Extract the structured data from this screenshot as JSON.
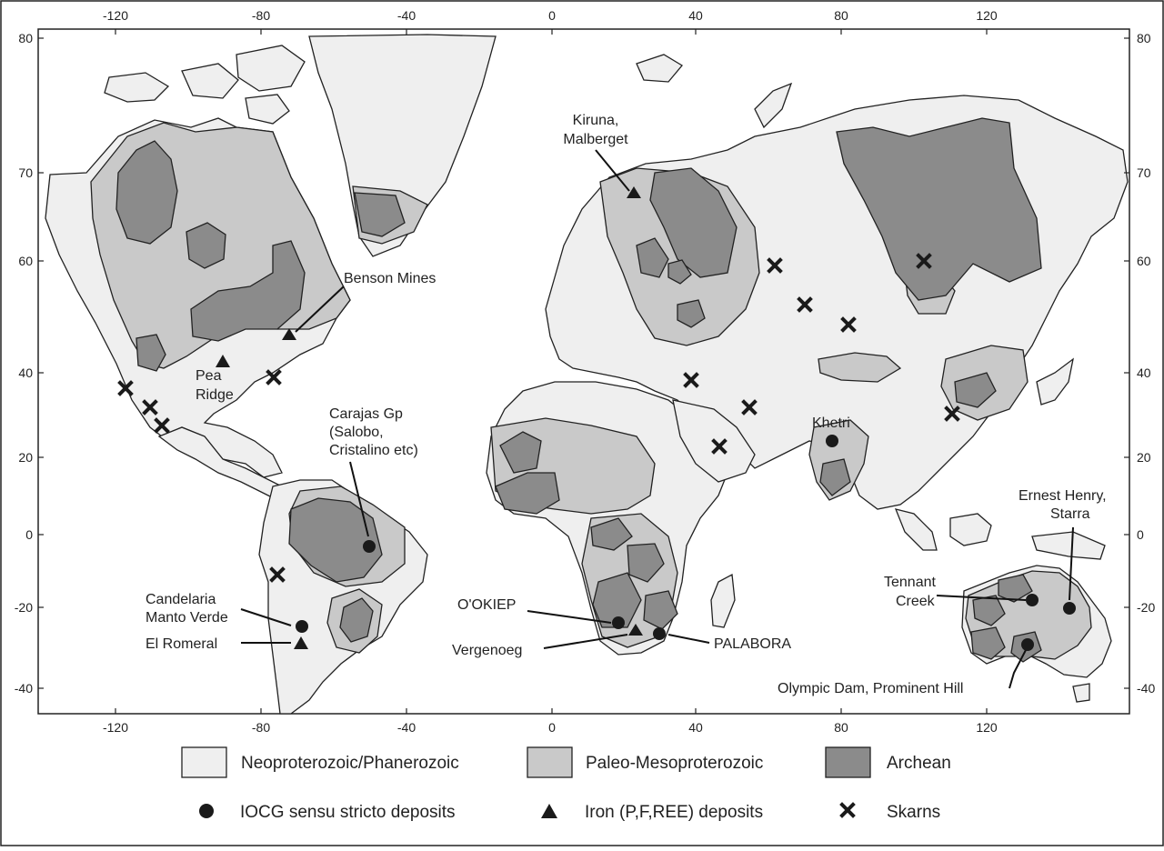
{
  "axes": {
    "x_ticks": [
      "-120",
      "-80",
      "-40",
      "0",
      "40",
      "80",
      "120"
    ],
    "y_ticks": [
      "80",
      "70",
      "60",
      "40",
      "20",
      "0",
      "-20",
      "-40"
    ]
  },
  "colors": {
    "neoproterozoic": "#efefef",
    "paleo_mesoproterozoic": "#c9c9c9",
    "archean": "#8b8b8b",
    "marker": "#1a1a1a"
  },
  "labels": {
    "benson": "Benson Mines",
    "pea1": "Pea",
    "pea2": "Ridge",
    "kiruna1": "Kiruna,",
    "kiruna2": "Malberget",
    "carajas1": "Carajas Gp",
    "carajas2": "(Salobo,",
    "carajas3": "Cristalino etc)",
    "khetri": "Khetri",
    "ernest1": "Ernest Henry,",
    "ernest2": "Starra",
    "tennant1": "Tennant",
    "tennant2": "Creek",
    "candelaria1": "Candelaria",
    "candelaria2": "Manto Verde",
    "romeral": "El Romeral",
    "okiep": "O'OKIEP",
    "vergenoeg": "Vergenoeg",
    "palabora": "PALABORA",
    "olympic": "Olympic Dam, Prominent Hill"
  },
  "legend": {
    "neo": "Neoproterozoic/Phanerozoic",
    "paleo": "Paleo-Mesoproterozoic",
    "archean": "Archean",
    "iocg": "IOCG sensu stricto deposits",
    "iron": "Iron (P,F,REE) deposits",
    "skarns": "Skarns"
  },
  "legend_icons": {
    "iocg": "filled-circle-icon",
    "iron": "filled-triangle-icon",
    "skarns": "x-mark-icon"
  }
}
